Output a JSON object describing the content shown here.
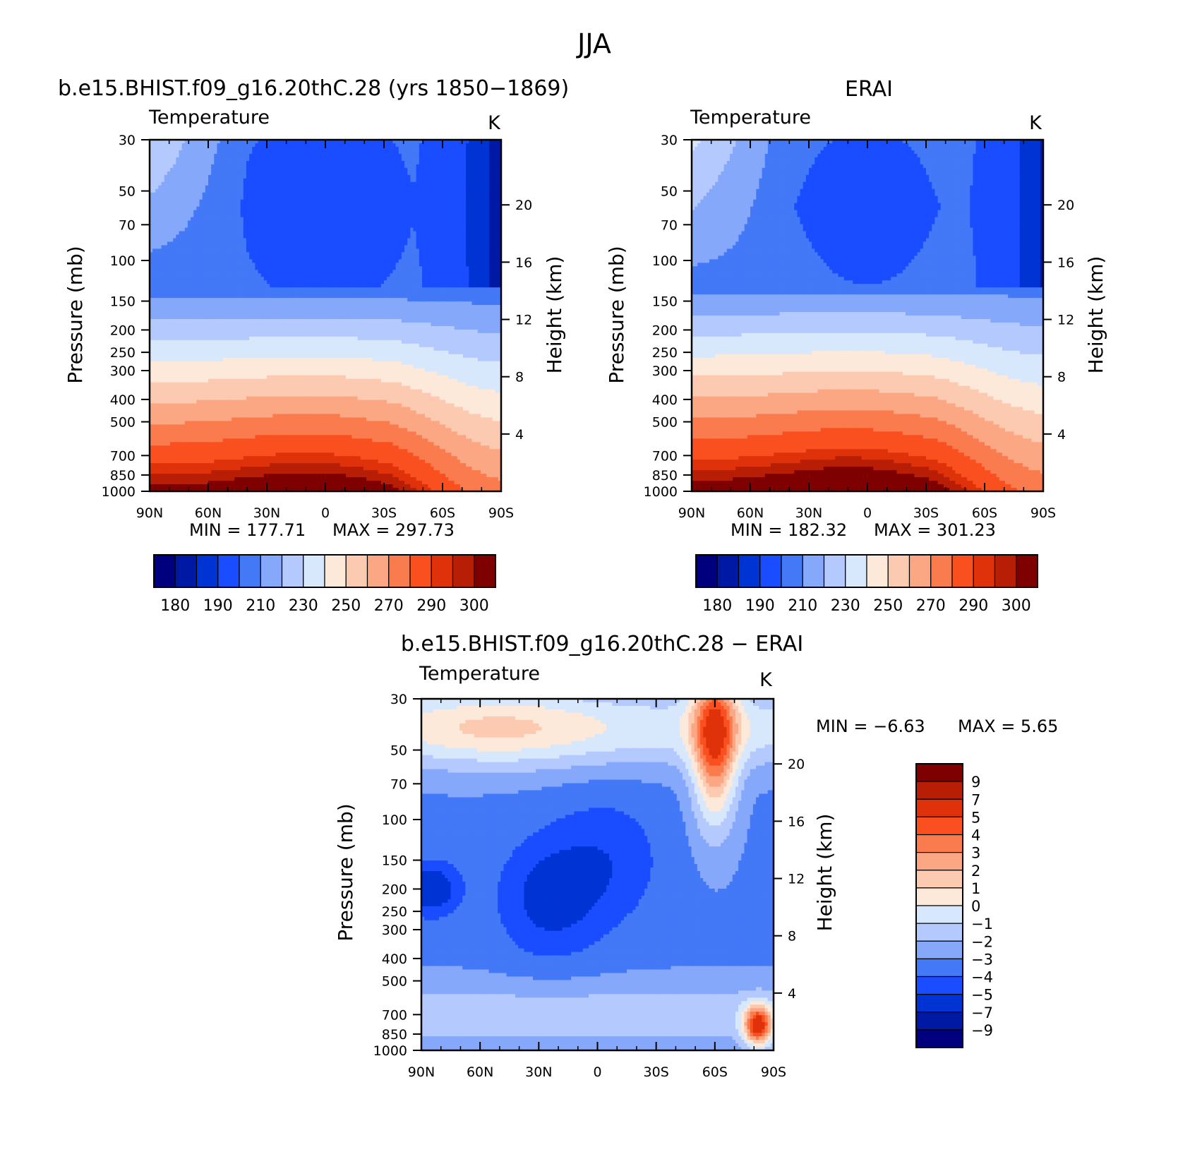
{
  "figure": {
    "title": "JJA"
  },
  "chart_data": [
    {
      "type": "heatmap",
      "panel_title": "b.e15.BHIST.f09_g16.20thC.28 (yrs 1850−1869)",
      "left_label": "Temperature",
      "units": "K",
      "ylabel": "Pressure  (mb)",
      "ylabel_right": "Height  (km)",
      "x_ticks": [
        "90N",
        "60N",
        "30N",
        "0",
        "30S",
        "60S",
        "90S"
      ],
      "y_ticks": [
        "30",
        "50",
        "70",
        "100",
        "150",
        "200",
        "250",
        "300",
        "400",
        "500",
        "700",
        "850",
        "1000"
      ],
      "y_right_ticks": [
        "20",
        "16",
        "12",
        "8",
        "4"
      ],
      "min_text": "MIN  =  177.71",
      "max_text": "MAX  =  297.73",
      "min": 177.71,
      "max": 297.73,
      "colorbar_labels": [
        "180",
        "190",
        "210",
        "230",
        "250",
        "270",
        "290",
        "300"
      ],
      "colorbar_levels": [
        180,
        185,
        190,
        200,
        210,
        220,
        230,
        240,
        250,
        260,
        270,
        280,
        290,
        295,
        300
      ]
    },
    {
      "type": "heatmap",
      "panel_title": "ERAI",
      "left_label": "Temperature",
      "units": "K",
      "ylabel": "Pressure  (mb)",
      "ylabel_right": "Height  (km)",
      "x_ticks": [
        "90N",
        "60N",
        "30N",
        "0",
        "30S",
        "60S",
        "90S"
      ],
      "y_ticks": [
        "30",
        "50",
        "70",
        "100",
        "150",
        "200",
        "250",
        "300",
        "400",
        "500",
        "700",
        "850",
        "1000"
      ],
      "y_right_ticks": [
        "20",
        "16",
        "12",
        "8",
        "4"
      ],
      "min_text": "MIN  =  182.32",
      "max_text": "MAX  =  301.23",
      "min": 182.32,
      "max": 301.23,
      "colorbar_labels": [
        "180",
        "190",
        "210",
        "230",
        "250",
        "270",
        "290",
        "300"
      ],
      "colorbar_levels": [
        180,
        185,
        190,
        200,
        210,
        220,
        230,
        240,
        250,
        260,
        270,
        280,
        290,
        295,
        300
      ]
    },
    {
      "type": "heatmap",
      "panel_title": "b.e15.BHIST.f09_g16.20thC.28  −  ERAI",
      "left_label": "Temperature",
      "units": "K",
      "ylabel": "Pressure  (mb)",
      "ylabel_right": "Height  (km)",
      "x_ticks": [
        "90N",
        "60N",
        "30N",
        "0",
        "30S",
        "60S",
        "90S"
      ],
      "y_ticks": [
        "30",
        "50",
        "70",
        "100",
        "150",
        "200",
        "250",
        "300",
        "400",
        "500",
        "700",
        "850",
        "1000"
      ],
      "y_right_ticks": [
        "20",
        "16",
        "12",
        "8",
        "4"
      ],
      "min_text": "MIN  =    −6.63",
      "max_text": "MAX  =      5.65",
      "min": -6.63,
      "max": 5.65,
      "colorbar_labels": [
        "9",
        "7",
        "5",
        "4",
        "3",
        "2",
        "1",
        "0",
        "−1",
        "−2",
        "−3",
        "−4",
        "−5",
        "−7",
        "−9"
      ],
      "colorbar_levels": [
        -9,
        -7,
        -5,
        -4,
        -3,
        -2,
        -1,
        0,
        1,
        2,
        3,
        4,
        5,
        7,
        9
      ]
    }
  ],
  "colors": {
    "palette": [
      "#00007f",
      "#0019a5",
      "#0033d4",
      "#1a4dff",
      "#4378f7",
      "#86a8fb",
      "#b4caff",
      "#d7e8fc",
      "#fde9d9",
      "#fcc9b1",
      "#fca783",
      "#fa7b4e",
      "#fa5020",
      "#e0320a",
      "#b81e05",
      "#7f0000"
    ]
  }
}
